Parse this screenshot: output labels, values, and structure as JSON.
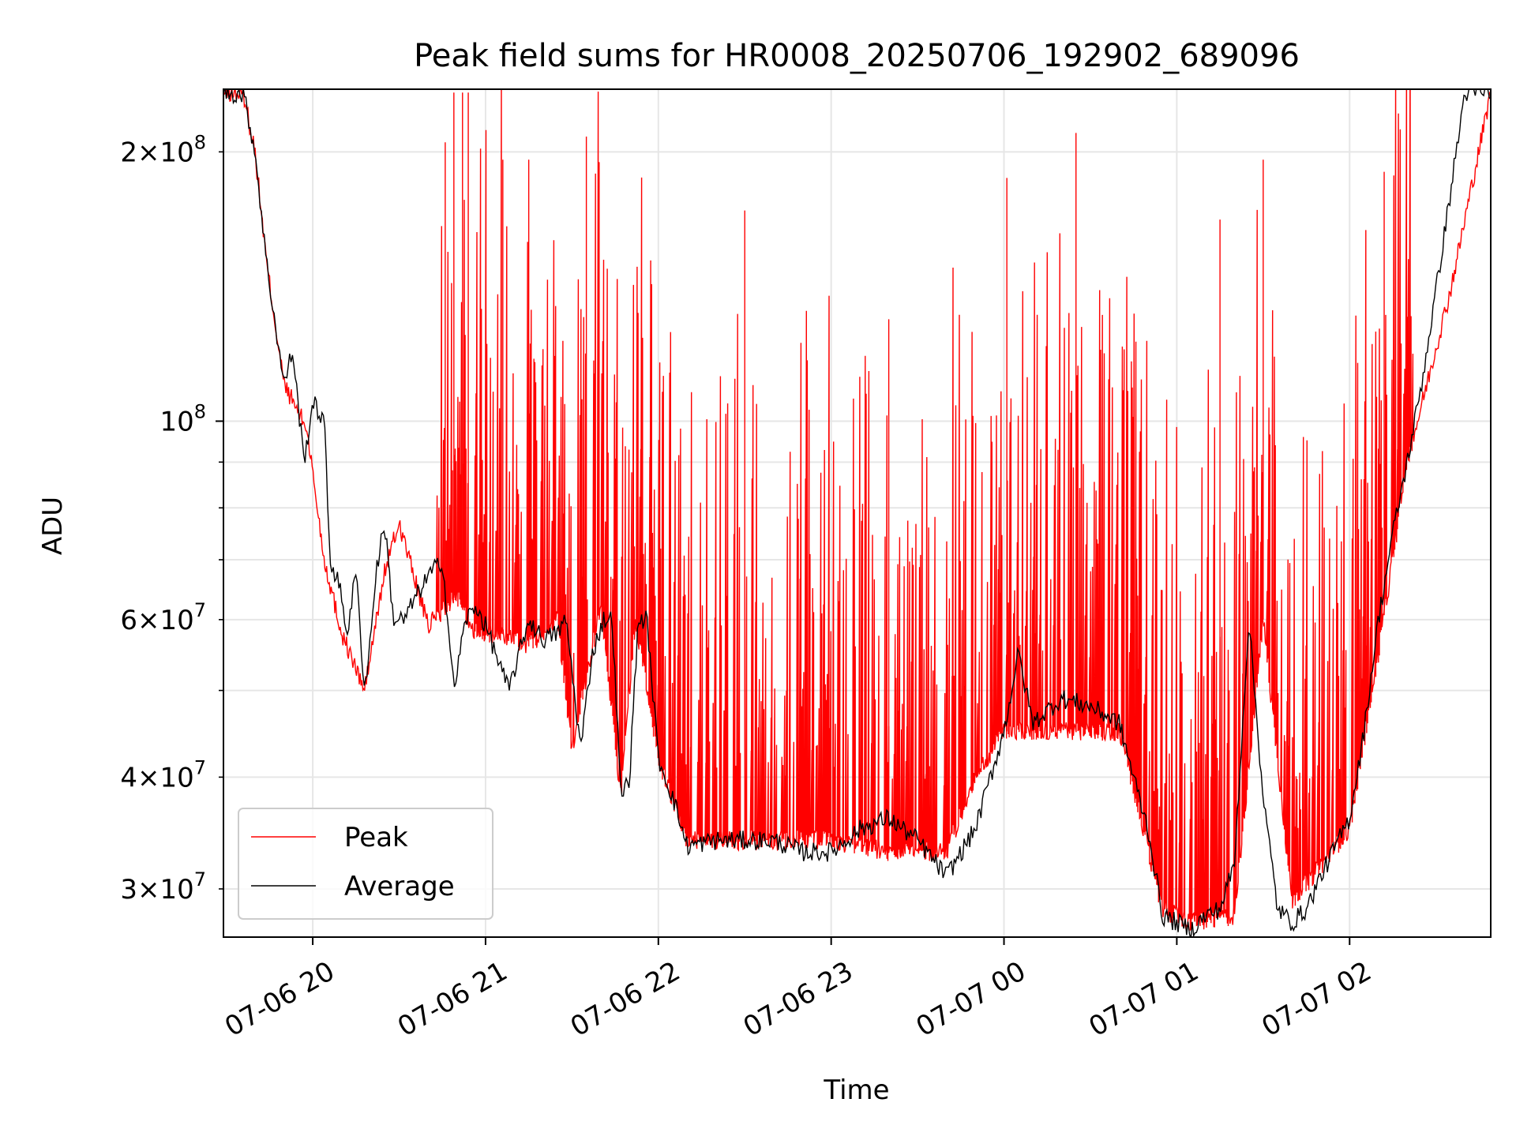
{
  "chart_data": {
    "type": "line",
    "title": "Peak field sums for HR0008_20250706_192902_689096",
    "xlabel": "Time",
    "ylabel": "ADU",
    "yscale": "log",
    "xlim": [
      "2025-07-06 19:29",
      "2025-07-07 02:49"
    ],
    "ylim": [
      26500000,
      235000000
    ],
    "grid": true,
    "legend_position": "lower-left",
    "x_ticks": [
      {
        "value": "2025-07-06 20:00",
        "label": "07-06 20"
      },
      {
        "value": "2025-07-06 21:00",
        "label": "07-06 21"
      },
      {
        "value": "2025-07-06 22:00",
        "label": "07-06 22"
      },
      {
        "value": "2025-07-06 23:00",
        "label": "07-06 23"
      },
      {
        "value": "2025-07-07 00:00",
        "label": "07-07 00"
      },
      {
        "value": "2025-07-07 01:00",
        "label": "07-07 01"
      },
      {
        "value": "2025-07-07 02:00",
        "label": "07-07 02"
      }
    ],
    "y_major_ticks": [
      {
        "value": 100000000,
        "base": "10",
        "exp": "8"
      }
    ],
    "y_minor_ticks": [
      {
        "value": 30000000,
        "mant": "3",
        "times": "×",
        "base": "10",
        "exp": "7"
      },
      {
        "value": 40000000,
        "mant": "4",
        "times": "×",
        "base": "10",
        "exp": "7"
      },
      {
        "value": 60000000,
        "mant": "6",
        "times": "×",
        "base": "10",
        "exp": "7"
      },
      {
        "value": 200000000,
        "mant": "2",
        "times": "×",
        "base": "10",
        "exp": "8"
      }
    ],
    "y_minor_unlabeled": [
      50000000,
      70000000,
      80000000,
      90000000
    ],
    "series": [
      {
        "name": "Peak",
        "color": "#ff0000",
        "style": "baseline with dense upward spikes",
        "x": [
          "2025-07-06 19:29",
          "2025-07-06 19:36",
          "2025-07-06 19:40",
          "2025-07-06 19:44",
          "2025-07-06 19:50",
          "2025-07-06 19:58",
          "2025-07-06 20:04",
          "2025-07-06 20:10",
          "2025-07-06 20:18",
          "2025-07-06 20:25",
          "2025-07-06 20:30",
          "2025-07-06 20:40",
          "2025-07-06 20:50",
          "2025-07-06 20:55",
          "2025-07-06 21:05",
          "2025-07-06 21:15",
          "2025-07-06 21:25",
          "2025-07-06 21:30",
          "2025-07-06 21:40",
          "2025-07-06 21:47",
          "2025-07-06 21:52",
          "2025-07-06 22:00",
          "2025-07-06 22:10",
          "2025-07-06 22:30",
          "2025-07-06 23:00",
          "2025-07-06 23:20",
          "2025-07-06 23:40",
          "2025-07-06 23:50",
          "2025-07-07 00:00",
          "2025-07-07 00:20",
          "2025-07-07 00:40",
          "2025-07-07 00:55",
          "2025-07-07 01:05",
          "2025-07-07 01:20",
          "2025-07-07 01:30",
          "2025-07-07 01:40",
          "2025-07-07 02:00",
          "2025-07-07 02:10",
          "2025-07-07 02:20",
          "2025-07-07 02:35",
          "2025-07-07 02:49"
        ],
        "y": [
          233000000,
          232000000,
          200000000,
          150000000,
          110000000,
          98000000,
          70000000,
          58000000,
          50000000,
          68000000,
          77000000,
          59000000,
          64000000,
          58000000,
          58000000,
          56000000,
          60000000,
          43000000,
          62000000,
          38000000,
          60000000,
          42000000,
          34000000,
          34000000,
          34000000,
          33000000,
          33000000,
          40000000,
          45000000,
          45000000,
          45000000,
          28500000,
          27500000,
          28000000,
          60000000,
          29000000,
          35000000,
          55000000,
          90000000,
          140000000,
          233000000
        ],
        "spikes": [
          {
            "x": "2025-07-06 20:46",
            "y": 205000000
          },
          {
            "x": "2025-07-06 20:49",
            "y": 233000000
          },
          {
            "x": "2025-07-06 20:52",
            "y": 233000000
          },
          {
            "x": "2025-07-06 20:54",
            "y": 233000000
          },
          {
            "x": "2025-07-06 21:06",
            "y": 196000000
          },
          {
            "x": "2025-07-06 21:15",
            "y": 196000000
          },
          {
            "x": "2025-07-06 21:35",
            "y": 208000000
          },
          {
            "x": "2025-07-06 22:30",
            "y": 172000000
          },
          {
            "x": "2025-07-06 23:20",
            "y": 130000000
          },
          {
            "x": "2025-07-07 00:01",
            "y": 187000000
          },
          {
            "x": "2025-07-07 00:25",
            "y": 210000000
          },
          {
            "x": "2025-07-07 01:15",
            "y": 168000000
          },
          {
            "x": "2025-07-07 01:30",
            "y": 196000000
          },
          {
            "x": "2025-07-07 02:12",
            "y": 190000000
          }
        ]
      },
      {
        "name": "Average",
        "color": "#000000",
        "x": [
          "2025-07-06 19:29",
          "2025-07-06 19:36",
          "2025-07-06 19:40",
          "2025-07-06 19:44",
          "2025-07-06 19:50",
          "2025-07-06 19:53",
          "2025-07-06 19:57",
          "2025-07-06 20:00",
          "2025-07-06 20:04",
          "2025-07-06 20:06",
          "2025-07-06 20:09",
          "2025-07-06 20:12",
          "2025-07-06 20:15",
          "2025-07-06 20:18",
          "2025-07-06 20:20",
          "2025-07-06 20:22",
          "2025-07-06 20:25",
          "2025-07-06 20:28",
          "2025-07-06 20:32",
          "2025-07-06 20:35",
          "2025-07-06 20:40",
          "2025-07-06 20:45",
          "2025-07-06 20:49",
          "2025-07-06 20:53",
          "2025-07-06 20:57",
          "2025-07-06 21:01",
          "2025-07-06 21:08",
          "2025-07-06 21:15",
          "2025-07-06 21:20",
          "2025-07-06 21:25",
          "2025-07-06 21:28",
          "2025-07-06 21:33",
          "2025-07-06 21:37",
          "2025-07-06 21:41",
          "2025-07-06 21:44",
          "2025-07-06 21:47",
          "2025-07-06 21:50",
          "2025-07-06 21:53",
          "2025-07-06 21:56",
          "2025-07-06 22:00",
          "2025-07-06 22:05",
          "2025-07-06 22:10",
          "2025-07-06 22:20",
          "2025-07-06 22:30",
          "2025-07-06 22:40",
          "2025-07-06 22:50",
          "2025-07-06 23:00",
          "2025-07-06 23:10",
          "2025-07-06 23:20",
          "2025-07-06 23:30",
          "2025-07-06 23:40",
          "2025-07-06 23:50",
          "2025-07-07 00:00",
          "2025-07-07 00:05",
          "2025-07-07 00:10",
          "2025-07-07 00:20",
          "2025-07-07 00:30",
          "2025-07-07 00:40",
          "2025-07-07 00:45",
          "2025-07-07 00:50",
          "2025-07-07 00:55",
          "2025-07-07 01:00",
          "2025-07-07 01:05",
          "2025-07-07 01:10",
          "2025-07-07 01:15",
          "2025-07-07 01:20",
          "2025-07-07 01:25",
          "2025-07-07 01:30",
          "2025-07-07 01:35",
          "2025-07-07 01:40",
          "2025-07-07 01:45",
          "2025-07-07 01:50",
          "2025-07-07 02:00",
          "2025-07-07 02:05",
          "2025-07-07 02:10",
          "2025-07-07 02:15",
          "2025-07-07 02:20",
          "2025-07-07 02:25",
          "2025-07-07 02:30",
          "2025-07-07 02:35",
          "2025-07-07 02:40",
          "2025-07-07 02:49"
        ],
        "y": [
          233000000,
          232000000,
          200000000,
          150000000,
          110000000,
          120000000,
          90000000,
          105000000,
          100000000,
          70000000,
          66000000,
          58000000,
          68000000,
          50000000,
          57000000,
          68000000,
          77000000,
          60000000,
          60000000,
          63000000,
          67000000,
          70000000,
          50000000,
          60000000,
          62000000,
          58000000,
          50000000,
          60000000,
          57000000,
          58000000,
          60000000,
          43000000,
          55000000,
          60000000,
          60000000,
          38000000,
          40000000,
          60000000,
          60000000,
          42000000,
          38000000,
          33500000,
          34000000,
          34000000,
          34000000,
          33000000,
          33000000,
          35000000,
          36000000,
          34000000,
          31000000,
          35000000,
          45000000,
          55000000,
          46000000,
          49000000,
          48000000,
          46000000,
          40000000,
          35000000,
          28000000,
          27500000,
          27000000,
          28000000,
          28500000,
          32000000,
          60000000,
          38000000,
          28500000,
          27500000,
          28500000,
          31000000,
          36000000,
          45000000,
          60000000,
          75000000,
          90000000,
          110000000,
          140000000,
          180000000,
          233000000,
          233000000
        ]
      }
    ]
  }
}
